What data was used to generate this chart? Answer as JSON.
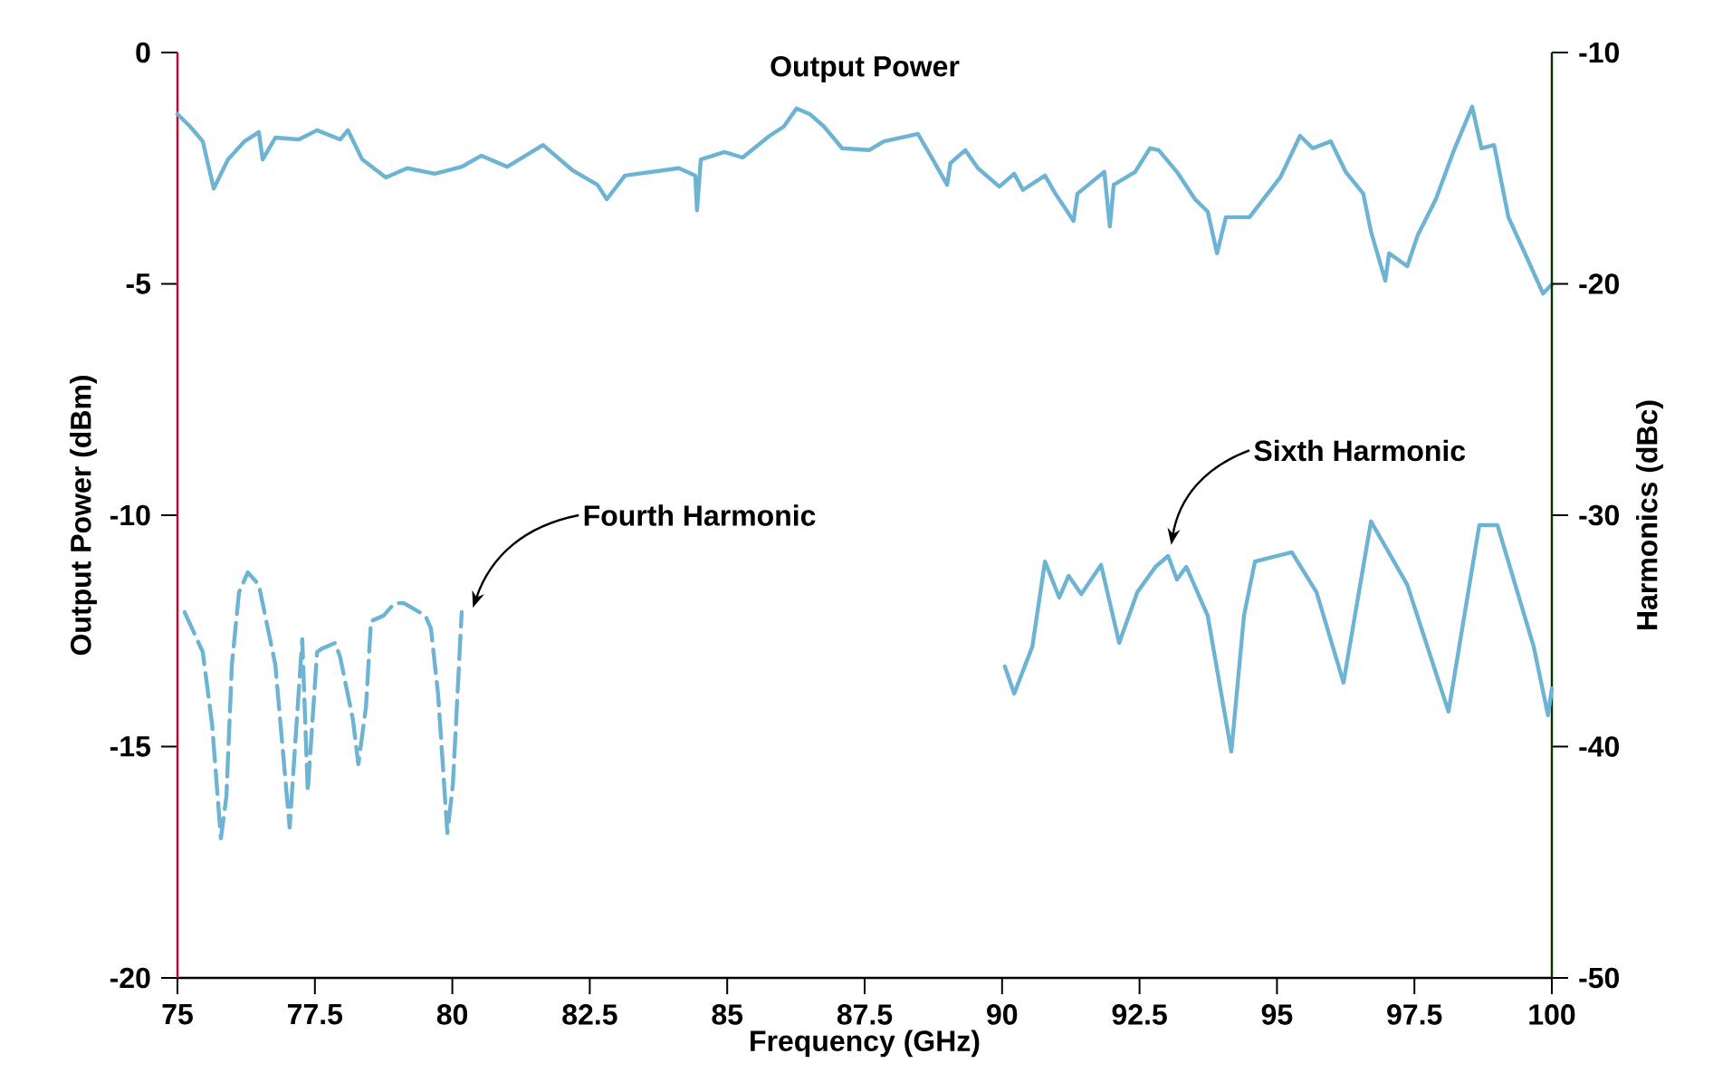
{
  "chart_data": {
    "type": "line",
    "title": "Output Power",
    "xlabel": "Frequency (GHz)",
    "ylabel": "Output Power (dBm)",
    "y2label": "Harmonics (dBc)",
    "xlim": [
      75,
      100
    ],
    "ylim": [
      -20,
      0
    ],
    "y2lim": [
      -50,
      -10
    ],
    "xticks": [
      75,
      77.5,
      80,
      82.5,
      85,
      87.5,
      90,
      92.5,
      95,
      97.5,
      100
    ],
    "yticks": [
      0,
      -5,
      -10,
      -15,
      -20
    ],
    "y2ticks": [
      -10,
      -20,
      -30,
      -40,
      -50
    ],
    "marker": "none",
    "series": [
      {
        "color": "#6db3d3",
        "line_style": "solid",
        "x": [
          75.0,
          75.23,
          75.46,
          75.66,
          75.92,
          76.22,
          76.48,
          76.55,
          76.78,
          77.21,
          77.54,
          77.96,
          78.1,
          78.36,
          78.79,
          79.18,
          79.68,
          80.17,
          80.53,
          81.0,
          81.65,
          82.18,
          82.64,
          82.81,
          83.14,
          83.63,
          84.12,
          84.42,
          84.45,
          84.52,
          84.95,
          85.28,
          85.77,
          86.03,
          86.26,
          86.5,
          86.76,
          87.09,
          87.58,
          87.85,
          88.47,
          88.74,
          89.0,
          89.06,
          89.33,
          89.56,
          89.95,
          90.22,
          90.38,
          90.78,
          90.97,
          91.3,
          91.37,
          91.86,
          91.96,
          92.03,
          92.42,
          92.69,
          92.85,
          93.18,
          93.51,
          93.74,
          93.91,
          94.07,
          94.5,
          95.06,
          95.42,
          95.65,
          95.98,
          96.25,
          96.57,
          96.71,
          96.97,
          97.04,
          97.37,
          97.56,
          97.89,
          98.22,
          98.55,
          98.72,
          98.95,
          99.21,
          99.51,
          99.84,
          100.0
        ],
        "values": [
          -1.33,
          -1.6,
          -1.92,
          -2.94,
          -2.31,
          -1.92,
          -1.72,
          -2.31,
          -1.84,
          -1.88,
          -1.68,
          -1.88,
          -1.68,
          -2.31,
          -2.7,
          -2.5,
          -2.62,
          -2.47,
          -2.23,
          -2.47,
          -2.0,
          -2.54,
          -2.86,
          -3.17,
          -2.66,
          -2.58,
          -2.5,
          -2.66,
          -3.41,
          -2.31,
          -2.15,
          -2.27,
          -1.8,
          -1.6,
          -1.21,
          -1.33,
          -1.6,
          -2.07,
          -2.11,
          -1.92,
          -1.76,
          -2.31,
          -2.86,
          -2.39,
          -2.11,
          -2.5,
          -2.9,
          -2.62,
          -2.97,
          -2.66,
          -3.05,
          -3.64,
          -3.05,
          -2.58,
          -3.76,
          -2.86,
          -2.58,
          -2.07,
          -2.11,
          -2.58,
          -3.17,
          -3.44,
          -4.34,
          -3.56,
          -3.56,
          -2.7,
          -1.8,
          -2.07,
          -1.92,
          -2.58,
          -3.05,
          -3.87,
          -4.93,
          -4.34,
          -4.62,
          -3.95,
          -3.17,
          -2.11,
          -1.17,
          -2.07,
          -2.0,
          -3.56,
          -4.34,
          -5.21,
          -5.01
        ]
      },
      {
        "name": "Fourth Harmonic",
        "color": "#6db3d3",
        "line_style": "dashed",
        "axis": "y2",
        "x": [
          75.13,
          75.46,
          75.63,
          75.79,
          75.89,
          75.99,
          76.12,
          76.28,
          76.48,
          76.78,
          77.04,
          77.27,
          77.37,
          77.54,
          77.64,
          77.87,
          77.96,
          78.19,
          78.29,
          78.43,
          78.52,
          78.75,
          78.95,
          79.12,
          79.51,
          79.61,
          79.74,
          79.91,
          80.01,
          80.17
        ],
        "values": [
          -34.19,
          -35.91,
          -39.04,
          -43.97,
          -42.17,
          -36.46,
          -33.33,
          -32.47,
          -33.01,
          -36.46,
          -43.5,
          -35.36,
          -41.94,
          -35.91,
          -35.75,
          -35.52,
          -36.14,
          -38.81,
          -40.76,
          -38.26,
          -34.58,
          -34.34,
          -33.8,
          -33.8,
          -34.34,
          -34.89,
          -37.71,
          -43.74,
          -41.62,
          -34.19
        ]
      },
      {
        "name": "Sixth Harmonic",
        "color": "#6db3d3",
        "line_style": "solid",
        "axis": "y2",
        "x": [
          90.05,
          90.22,
          90.55,
          90.78,
          91.04,
          91.21,
          91.44,
          91.8,
          92.13,
          92.46,
          92.79,
          93.02,
          93.18,
          93.35,
          93.74,
          94.17,
          94.4,
          94.6,
          95.27,
          95.72,
          96.21,
          96.71,
          97.37,
          98.12,
          98.68,
          99.01,
          99.67,
          99.93,
          100.0
        ],
        "values": [
          -36.54,
          -37.71,
          -35.68,
          -32.0,
          -33.56,
          -32.62,
          -33.41,
          -32.15,
          -35.52,
          -33.33,
          -32.23,
          -31.76,
          -32.78,
          -32.23,
          -34.34,
          -40.22,
          -34.34,
          -32.0,
          -31.6,
          -33.33,
          -37.24,
          -30.27,
          -33.01,
          -38.49,
          -30.43,
          -30.43,
          -35.68,
          -38.65,
          -37.48
        ]
      }
    ]
  }
}
